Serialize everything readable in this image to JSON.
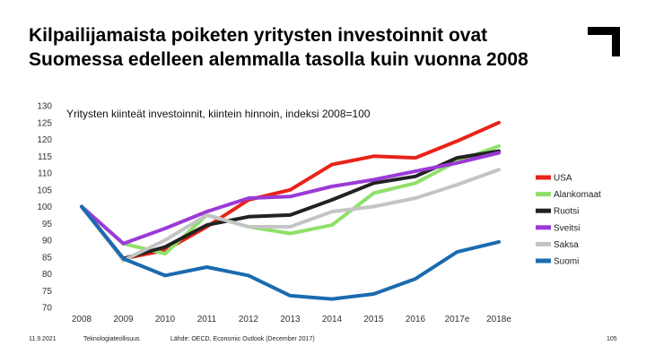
{
  "slide": {
    "title": "Kilpailijamaista poiketen yritysten investoinnit ovat Suomessa edelleen alemmalla tasolla kuin vuonna 2008"
  },
  "footer": {
    "date": "11.9.2021",
    "organization": "Teknologiateollisuus",
    "source": "Lähde: OECD, Economic Outlook (December 2017)",
    "page": "105"
  },
  "chart_data": {
    "type": "line",
    "title": "Yritysten kiinteät investoinnit, kiintein hinnoin, indeksi 2008=100",
    "xlabel": "",
    "ylabel": "",
    "categories": [
      "2008",
      "2009",
      "2010",
      "2011",
      "2012",
      "2013",
      "2014",
      "2015",
      "2016",
      "2017e",
      "2018e"
    ],
    "yticks": [
      "130",
      "125",
      "120",
      "115",
      "110",
      "105",
      "100",
      "95",
      "90",
      "85",
      "80",
      "75",
      "70"
    ],
    "ylim": [
      70,
      130
    ],
    "legend_position": "right",
    "series": [
      {
        "name": "USA",
        "color": "#e8231a",
        "values": [
          100,
          84.5,
          87,
          94,
          102,
          105,
          112.5,
          115,
          114.5,
          119.5,
          125
        ]
      },
      {
        "name": "Alankomaat",
        "color": "#8fe06a",
        "values": [
          100,
          89,
          86,
          97.5,
          94,
          92,
          94.5,
          104,
          107,
          113.5,
          118
        ]
      },
      {
        "name": "Ruotsi",
        "color": "#222222",
        "values": [
          100,
          84.5,
          88,
          94.5,
          97,
          97.5,
          102,
          107,
          109,
          114.5,
          116.5
        ]
      },
      {
        "name": "Sveitsi",
        "color": "#9b3ad6",
        "values": [
          100,
          89,
          93.5,
          98.5,
          102.5,
          103,
          106,
          108,
          110.5,
          113,
          116
        ]
      },
      {
        "name": "Saksa",
        "color": "#c4c4c4",
        "values": [
          100,
          84,
          90,
          97.5,
          94,
          94,
          98.5,
          100,
          102.5,
          106.5,
          111
        ]
      },
      {
        "name": "Suomi",
        "color": "#1a6bb0",
        "values": [
          100,
          84.5,
          79.5,
          82,
          79.5,
          73.5,
          72.5,
          74,
          78.5,
          86.5,
          89.5
        ]
      }
    ]
  }
}
